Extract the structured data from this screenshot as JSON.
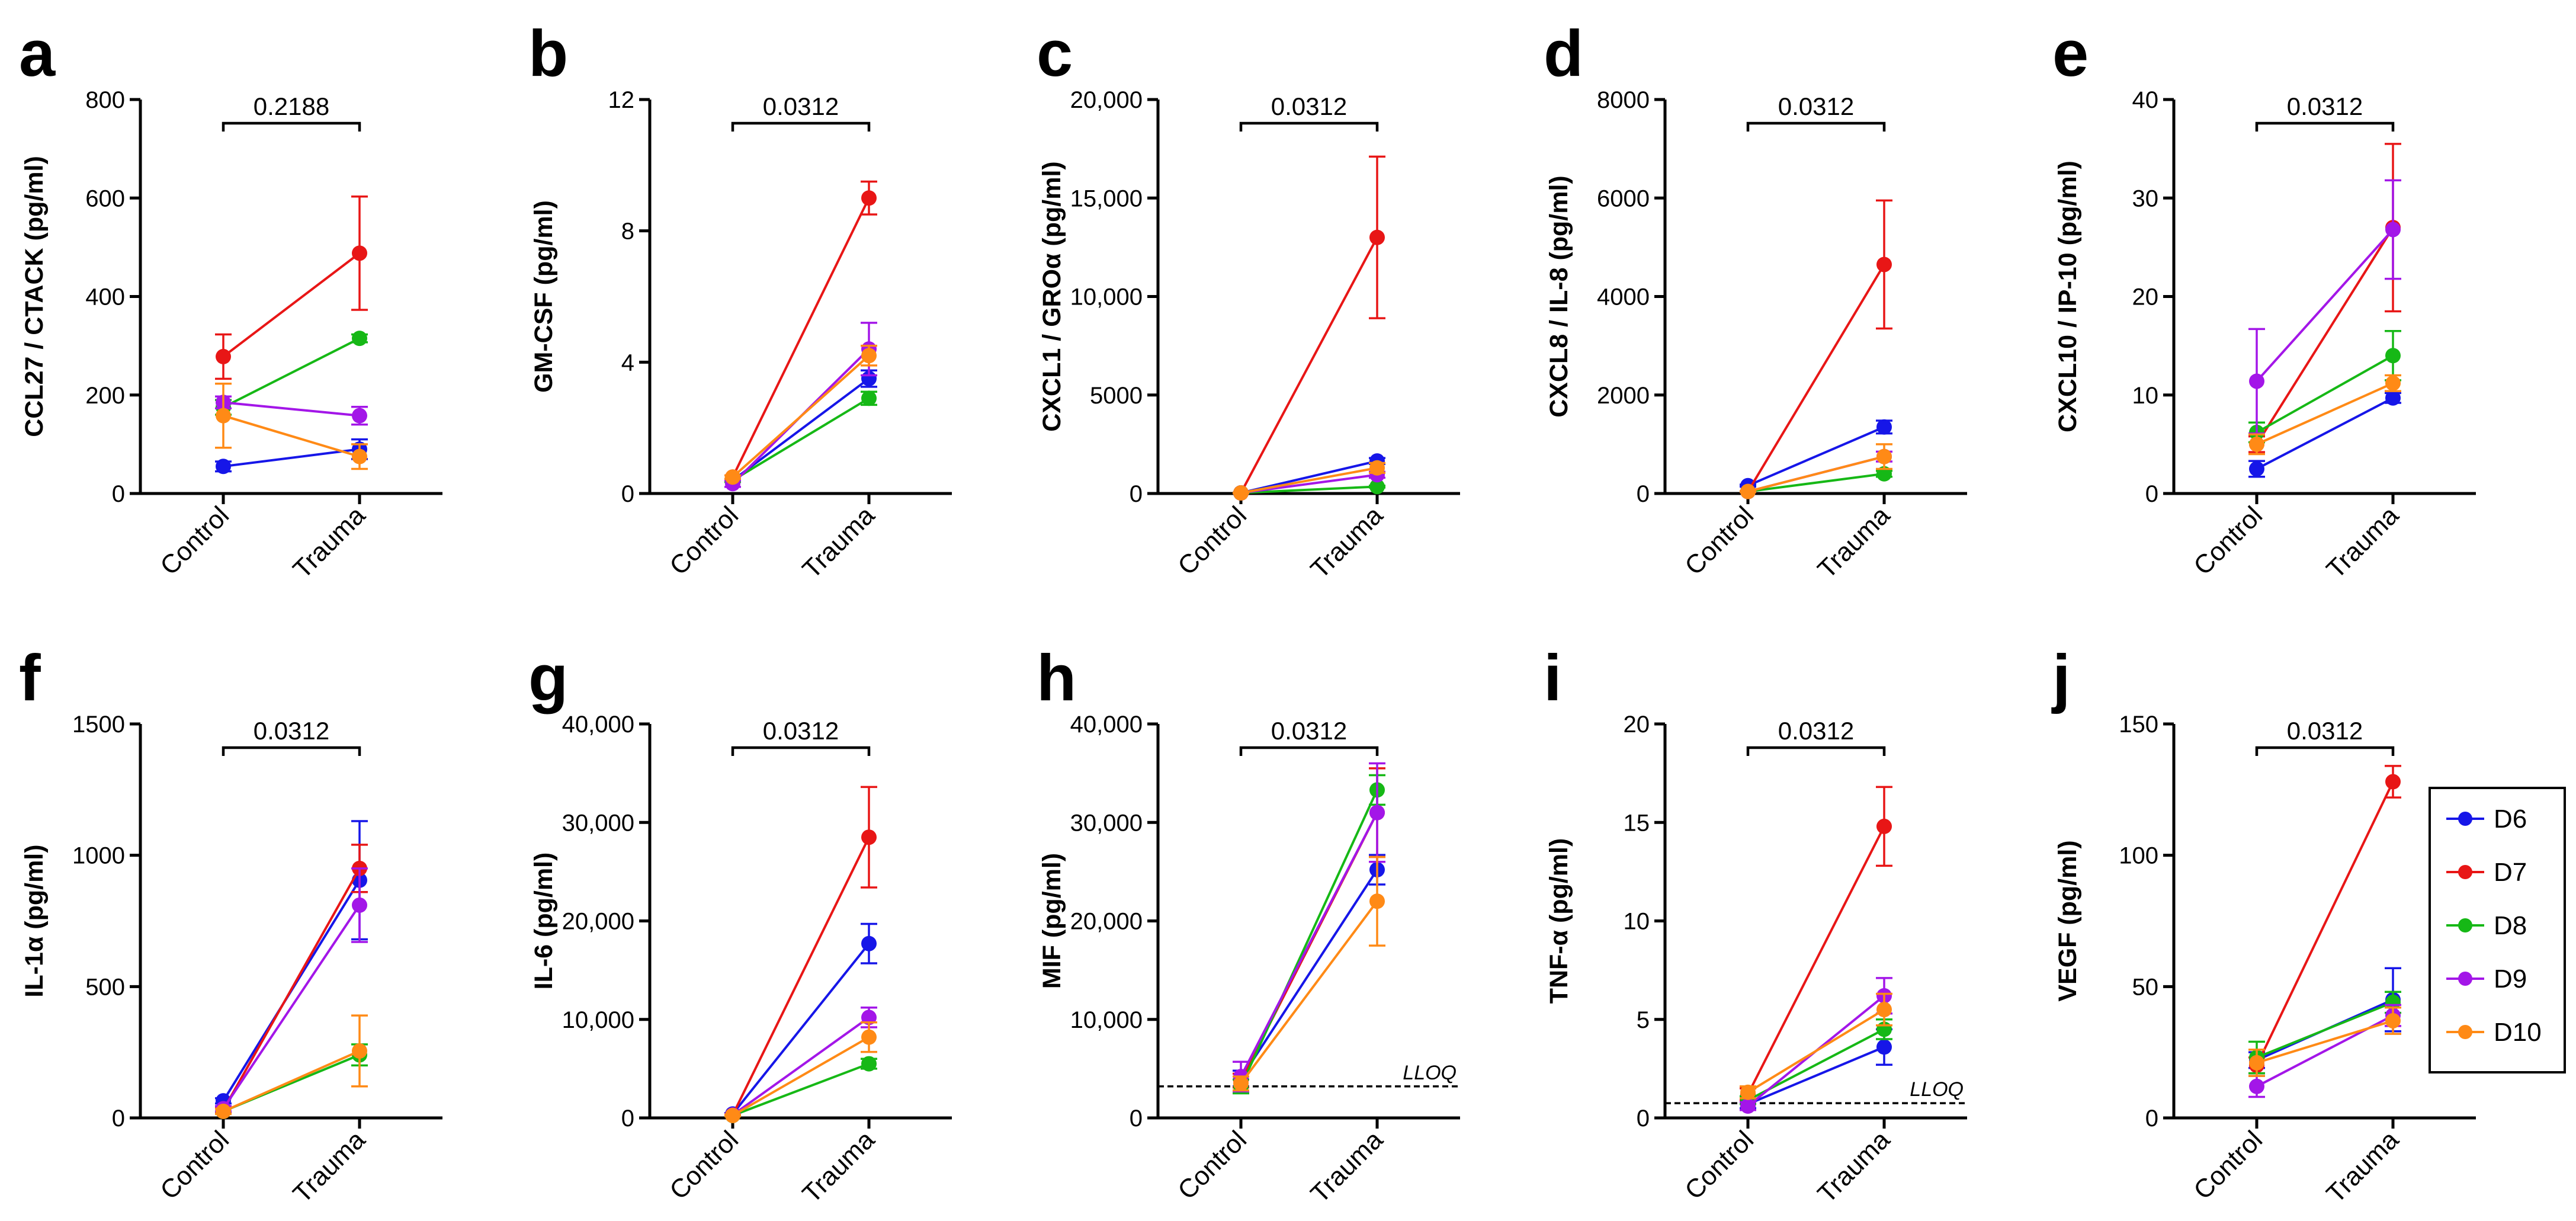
{
  "figure": {
    "x_categories": [
      "Control",
      "Trauma"
    ],
    "series_colors": {
      "D6": "#1616e8",
      "D7": "#e81616",
      "D8": "#16b816",
      "D9": "#a316e8",
      "D10": "#ff8a16"
    },
    "legend": [
      "D6",
      "D7",
      "D8",
      "D9",
      "D10"
    ]
  },
  "chart_data": [
    {
      "type": "line",
      "panel": "a",
      "ylabel": "CCL27 / CTACK (pg/ml)",
      "categories": [
        "Control",
        "Trauma"
      ],
      "ylim": [
        0,
        800
      ],
      "yticks": [
        0,
        200,
        400,
        600,
        800
      ],
      "ytick_labels": [
        "0",
        "200",
        "400",
        "600",
        "800"
      ],
      "p_value": "0.2188",
      "series": [
        {
          "name": "D6",
          "values": [
            55,
            90
          ],
          "err": [
            10,
            20
          ]
        },
        {
          "name": "D7",
          "values": [
            278,
            488
          ],
          "err": [
            45,
            115
          ]
        },
        {
          "name": "D8",
          "values": [
            175,
            315
          ],
          "err": [
            15,
            8
          ]
        },
        {
          "name": "D9",
          "values": [
            185,
            158
          ],
          "err": [
            12,
            18
          ]
        },
        {
          "name": "D10",
          "values": [
            158,
            75
          ],
          "err": [
            65,
            25
          ]
        }
      ]
    },
    {
      "type": "line",
      "panel": "b",
      "ylabel": "GM-CSF (pg/ml)",
      "categories": [
        "Control",
        "Trauma"
      ],
      "ylim": [
        0,
        12
      ],
      "yticks": [
        0,
        4,
        8,
        12
      ],
      "ytick_labels": [
        "0",
        "4",
        "8",
        "12"
      ],
      "p_value": "0.0312",
      "series": [
        {
          "name": "D6",
          "values": [
            0.4,
            3.5
          ],
          "err": [
            0.05,
            0.25
          ]
        },
        {
          "name": "D7",
          "values": [
            0.5,
            9.0
          ],
          "err": [
            0.05,
            0.5
          ]
        },
        {
          "name": "D8",
          "values": [
            0.4,
            2.9
          ],
          "err": [
            0.05,
            0.2
          ]
        },
        {
          "name": "D9",
          "values": [
            0.3,
            4.4
          ],
          "err": [
            0.1,
            0.8
          ]
        },
        {
          "name": "D10",
          "values": [
            0.5,
            4.2
          ],
          "err": [
            0.05,
            0.3
          ]
        }
      ]
    },
    {
      "type": "line",
      "panel": "c",
      "ylabel": "CXCL1 / GROα (pg/ml)",
      "categories": [
        "Control",
        "Trauma"
      ],
      "ylim": [
        0,
        20000
      ],
      "yticks": [
        0,
        5000,
        10000,
        15000,
        20000
      ],
      "ytick_labels": [
        "0",
        "5000",
        "10,000",
        "15,000",
        "20,000"
      ],
      "p_value": "0.0312",
      "series": [
        {
          "name": "D6",
          "values": [
            30,
            1650
          ],
          "err": [
            10,
            150
          ]
        },
        {
          "name": "D7",
          "values": [
            30,
            13000
          ],
          "err": [
            10,
            4100
          ]
        },
        {
          "name": "D8",
          "values": [
            30,
            350
          ],
          "err": [
            10,
            50
          ]
        },
        {
          "name": "D9",
          "values": [
            30,
            950
          ],
          "err": [
            10,
            150
          ]
        },
        {
          "name": "D10",
          "values": [
            30,
            1300
          ],
          "err": [
            10,
            250
          ]
        }
      ]
    },
    {
      "type": "line",
      "panel": "d",
      "ylabel": "CXCL8 / IL-8 (pg/ml)",
      "categories": [
        "Control",
        "Trauma"
      ],
      "ylim": [
        0,
        8000
      ],
      "yticks": [
        0,
        2000,
        4000,
        6000,
        8000
      ],
      "ytick_labels": [
        "0",
        "2000",
        "4000",
        "6000",
        "8000"
      ],
      "p_value": "0.0312",
      "series": [
        {
          "name": "D6",
          "values": [
            160,
            1350
          ],
          "err": [
            20,
            130
          ]
        },
        {
          "name": "D7",
          "values": [
            40,
            4650
          ],
          "err": [
            10,
            1300
          ]
        },
        {
          "name": "D8",
          "values": [
            40,
            400
          ],
          "err": [
            10,
            60
          ]
        },
        {
          "name": "D9",
          "values": [
            40,
            750
          ],
          "err": [
            10,
            100
          ]
        },
        {
          "name": "D10",
          "values": [
            40,
            750
          ],
          "err": [
            10,
            250
          ]
        }
      ]
    },
    {
      "type": "line",
      "panel": "e",
      "ylabel": "CXCL10 / IP-10 (pg/ml)",
      "categories": [
        "Control",
        "Trauma"
      ],
      "ylim": [
        0,
        40
      ],
      "yticks": [
        0,
        10,
        20,
        30,
        40
      ],
      "ytick_labels": [
        "0",
        "10",
        "20",
        "30",
        "40"
      ],
      "p_value": "0.0312",
      "series": [
        {
          "name": "D6",
          "values": [
            2.5,
            9.7
          ],
          "err": [
            0.8,
            0.5
          ]
        },
        {
          "name": "D7",
          "values": [
            5.0,
            27.0
          ],
          "err": [
            0.8,
            8.5
          ]
        },
        {
          "name": "D8",
          "values": [
            6.2,
            14.0
          ],
          "err": [
            1.0,
            2.5
          ]
        },
        {
          "name": "D9",
          "values": [
            11.4,
            26.8
          ],
          "err": [
            5.3,
            5.0
          ]
        },
        {
          "name": "D10",
          "values": [
            5.0,
            11.2
          ],
          "err": [
            1.0,
            0.8
          ]
        }
      ]
    },
    {
      "type": "line",
      "panel": "f",
      "ylabel": "IL-1α (pg/ml)",
      "categories": [
        "Control",
        "Trauma"
      ],
      "ylim": [
        0,
        1500
      ],
      "yticks": [
        0,
        500,
        1000,
        1500
      ],
      "ytick_labels": [
        "0",
        "500",
        "1000",
        "1500"
      ],
      "p_value": "0.0312",
      "series": [
        {
          "name": "D6",
          "values": [
            65,
            905
          ],
          "err": [
            10,
            225
          ]
        },
        {
          "name": "D7",
          "values": [
            30,
            950
          ],
          "err": [
            10,
            90
          ]
        },
        {
          "name": "D8",
          "values": [
            25,
            240
          ],
          "err": [
            10,
            40
          ]
        },
        {
          "name": "D9",
          "values": [
            35,
            810
          ],
          "err": [
            10,
            140
          ]
        },
        {
          "name": "D10",
          "values": [
            25,
            255
          ],
          "err": [
            10,
            135
          ]
        }
      ]
    },
    {
      "type": "line",
      "panel": "g",
      "ylabel": "IL-6 (pg/ml)",
      "categories": [
        "Control",
        "Trauma"
      ],
      "ylim": [
        0,
        40000
      ],
      "yticks": [
        0,
        10000,
        20000,
        30000,
        40000
      ],
      "ytick_labels": [
        "0",
        "10,000",
        "20,000",
        "30,000",
        "40,000"
      ],
      "p_value": "0.0312",
      "series": [
        {
          "name": "D6",
          "values": [
            400,
            17700
          ],
          "err": [
            100,
            2000
          ]
        },
        {
          "name": "D7",
          "values": [
            300,
            28500
          ],
          "err": [
            100,
            5100
          ]
        },
        {
          "name": "D8",
          "values": [
            250,
            5500
          ],
          "err": [
            80,
            500
          ]
        },
        {
          "name": "D9",
          "values": [
            300,
            10200
          ],
          "err": [
            100,
            1000
          ]
        },
        {
          "name": "D10",
          "values": [
            250,
            8200
          ],
          "err": [
            80,
            1500
          ]
        }
      ]
    },
    {
      "type": "line",
      "panel": "h",
      "ylabel": "MIF (pg/ml)",
      "categories": [
        "Control",
        "Trauma"
      ],
      "ylim": [
        0,
        40000
      ],
      "yticks": [
        0,
        10000,
        20000,
        30000,
        40000
      ],
      "ytick_labels": [
        "0",
        "10,000",
        "20,000",
        "30,000",
        "40,000"
      ],
      "p_value": "0.0312",
      "lloq": 3200,
      "lloq_label": "LLOQ",
      "series": [
        {
          "name": "D6",
          "values": [
            4000,
            25200
          ],
          "err": [
            800,
            1500
          ]
        },
        {
          "name": "D7",
          "values": [
            3800,
            31000
          ],
          "err": [
            700,
            4500
          ]
        },
        {
          "name": "D8",
          "values": [
            3200,
            33300
          ],
          "err": [
            700,
            1500
          ]
        },
        {
          "name": "D9",
          "values": [
            4200,
            31000
          ],
          "err": [
            1500,
            5000
          ]
        },
        {
          "name": "D10",
          "values": [
            3500,
            22000
          ],
          "err": [
            700,
            4500
          ]
        }
      ]
    },
    {
      "type": "line",
      "panel": "i",
      "ylabel": "TNF-α (pg/ml)",
      "categories": [
        "Control",
        "Trauma"
      ],
      "ylim": [
        0,
        20
      ],
      "yticks": [
        0,
        5,
        10,
        15,
        20
      ],
      "ytick_labels": [
        "0",
        "5",
        "10",
        "15",
        "20"
      ],
      "p_value": "0.0312",
      "lloq": 0.75,
      "lloq_label": "LLOQ",
      "series": [
        {
          "name": "D6",
          "values": [
            0.7,
            3.6
          ],
          "err": [
            0.2,
            0.9
          ]
        },
        {
          "name": "D7",
          "values": [
            1.2,
            14.8
          ],
          "err": [
            0.3,
            2.0
          ]
        },
        {
          "name": "D8",
          "values": [
            0.9,
            4.5
          ],
          "err": [
            0.2,
            0.5
          ]
        },
        {
          "name": "D9",
          "values": [
            0.6,
            6.2
          ],
          "err": [
            0.2,
            0.9
          ]
        },
        {
          "name": "D10",
          "values": [
            1.3,
            5.5
          ],
          "err": [
            0.3,
            0.8
          ]
        }
      ]
    },
    {
      "type": "line",
      "panel": "j",
      "ylabel": "VEGF (pg/ml)",
      "categories": [
        "Control",
        "Trauma"
      ],
      "ylim": [
        0,
        150
      ],
      "yticks": [
        0,
        50,
        100,
        150
      ],
      "ytick_labels": [
        "0",
        "50",
        "100",
        "150"
      ],
      "p_value": "0.0312",
      "series": [
        {
          "name": "D6",
          "values": [
            22,
            45
          ],
          "err": [
            3,
            12
          ]
        },
        {
          "name": "D7",
          "values": [
            20,
            128
          ],
          "err": [
            3,
            6
          ]
        },
        {
          "name": "D8",
          "values": [
            23,
            44
          ],
          "err": [
            6,
            4
          ]
        },
        {
          "name": "D9",
          "values": [
            12,
            39
          ],
          "err": [
            4,
            4
          ]
        },
        {
          "name": "D10",
          "values": [
            21,
            37
          ],
          "err": [
            5,
            5
          ]
        }
      ]
    }
  ]
}
